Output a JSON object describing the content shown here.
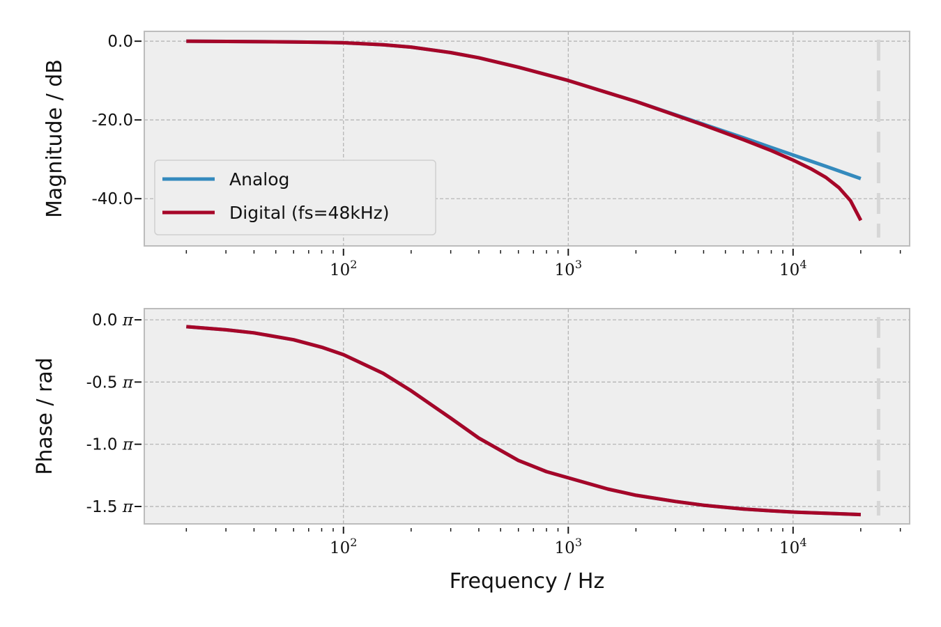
{
  "chart_data": [
    {
      "type": "line",
      "title": "",
      "xlabel": "",
      "ylabel": "Magnitude / dB",
      "xscale": "log",
      "xlim": [
        13,
        33000
      ],
      "ylim": [
        -52,
        2.5
      ],
      "xticks": [
        {
          "base": "10",
          "exp": "2",
          "value": 100
        },
        {
          "base": "10",
          "exp": "3",
          "value": 1000
        },
        {
          "base": "10",
          "exp": "4",
          "value": 10000
        }
      ],
      "yticks": [
        {
          "label": "0.0",
          "value": 0
        },
        {
          "label": "-20.0",
          "value": -20
        },
        {
          "label": "-40.0",
          "value": -40
        }
      ],
      "grid": true,
      "legend": "lower-left",
      "vline": 24000,
      "series": [
        {
          "name": "Analog",
          "color": "#348ABD",
          "x": [
            20,
            40,
            60,
            80,
            100,
            150,
            200,
            300,
            400,
            600,
            800,
            1000,
            1500,
            2000,
            3000,
            4000,
            6000,
            8000,
            10000,
            14000,
            20000
          ],
          "y": [
            0,
            -0.1,
            -0.2,
            -0.3,
            -0.4,
            -0.9,
            -1.5,
            -2.9,
            -4.2,
            -6.6,
            -8.5,
            -10.0,
            -13.1,
            -15.3,
            -18.7,
            -21.1,
            -24.5,
            -27.0,
            -28.9,
            -31.8,
            -34.9
          ]
        },
        {
          "name": "Digital (fs=48kHz)",
          "color": "#A60628",
          "x": [
            20,
            40,
            60,
            80,
            100,
            150,
            200,
            300,
            400,
            600,
            800,
            1000,
            1500,
            2000,
            3000,
            4000,
            6000,
            8000,
            10000,
            12000,
            14000,
            16000,
            18000,
            20000
          ],
          "y": [
            0,
            -0.1,
            -0.2,
            -0.3,
            -0.4,
            -0.9,
            -1.5,
            -2.9,
            -4.2,
            -6.6,
            -8.5,
            -10.0,
            -13.1,
            -15.3,
            -18.8,
            -21.3,
            -25.0,
            -27.8,
            -30.2,
            -32.4,
            -34.6,
            -37.2,
            -40.5,
            -45.5
          ]
        }
      ]
    },
    {
      "type": "line",
      "title": "",
      "xlabel": "Frequency / Hz",
      "ylabel": "Phase / rad",
      "xscale": "log",
      "xlim": [
        13,
        33000
      ],
      "ylim": [
        -1.64,
        0.09
      ],
      "xticks": [
        {
          "base": "10",
          "exp": "2",
          "value": 100
        },
        {
          "base": "10",
          "exp": "3",
          "value": 1000
        },
        {
          "base": "10",
          "exp": "4",
          "value": 10000
        }
      ],
      "yticks": [
        {
          "label": "0.0",
          "value": 0
        },
        {
          "label": "-0.5",
          "value": -0.5
        },
        {
          "label": "-1.0",
          "value": -1.0
        },
        {
          "label": "-1.5",
          "value": -1.5
        }
      ],
      "ytick_suffix": "π",
      "grid": true,
      "vline": 24000,
      "series": [
        {
          "name": "Analog",
          "color": "#348ABD",
          "x": [
            20,
            30,
            40,
            60,
            80,
            100,
            150,
            200,
            300,
            400,
            600,
            800,
            1000,
            1500,
            2000,
            3000,
            4000,
            6000,
            8000,
            10000,
            14000,
            20000
          ],
          "y": [
            -0.055,
            -0.08,
            -0.105,
            -0.16,
            -0.22,
            -0.28,
            -0.43,
            -0.57,
            -0.79,
            -0.95,
            -1.13,
            -1.22,
            -1.27,
            -1.36,
            -1.41,
            -1.46,
            -1.49,
            -1.52,
            -1.535,
            -1.545,
            -1.555,
            -1.565
          ]
        },
        {
          "name": "Digital (fs=48kHz)",
          "color": "#A60628",
          "x": [
            20,
            30,
            40,
            60,
            80,
            100,
            150,
            200,
            300,
            400,
            600,
            800,
            1000,
            1500,
            2000,
            3000,
            4000,
            6000,
            8000,
            10000,
            14000,
            20000
          ],
          "y": [
            -0.055,
            -0.08,
            -0.105,
            -0.16,
            -0.22,
            -0.28,
            -0.43,
            -0.57,
            -0.79,
            -0.95,
            -1.13,
            -1.22,
            -1.27,
            -1.36,
            -1.41,
            -1.46,
            -1.49,
            -1.52,
            -1.535,
            -1.545,
            -1.555,
            -1.565
          ]
        }
      ]
    }
  ]
}
